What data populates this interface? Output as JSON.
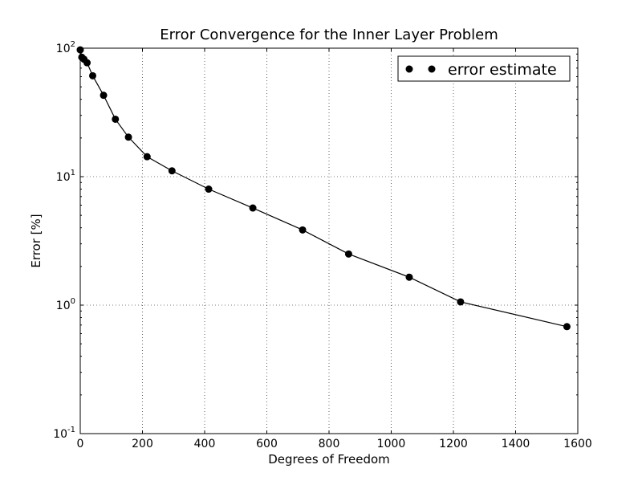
{
  "chart_data": {
    "type": "line",
    "title": "Error Convergence for the Inner Layer Problem",
    "xlabel": "Degrees of Freedom",
    "ylabel": "Error [%]",
    "xlim": [
      0,
      1600
    ],
    "ylim": [
      0.1,
      100
    ],
    "yscale": "log",
    "grid": true,
    "legend_position": "upper-right",
    "x_ticks": [
      {
        "value": 0,
        "label": "0"
      },
      {
        "value": 200,
        "label": "200"
      },
      {
        "value": 400,
        "label": "400"
      },
      {
        "value": 600,
        "label": "600"
      },
      {
        "value": 800,
        "label": "800"
      },
      {
        "value": 1000,
        "label": "1000"
      },
      {
        "value": 1200,
        "label": "1200"
      },
      {
        "value": 1400,
        "label": "1400"
      },
      {
        "value": 1600,
        "label": "1600"
      }
    ],
    "y_ticks": [
      {
        "value": 0.1,
        "base": "10",
        "exp": "-1"
      },
      {
        "value": 1,
        "base": "10",
        "exp": "0"
      },
      {
        "value": 10,
        "base": "10",
        "exp": "1"
      },
      {
        "value": 100,
        "base": "10",
        "exp": "2"
      }
    ],
    "series": [
      {
        "name": "error estimate",
        "color": "#000000",
        "marker": "circle",
        "x": [
          0,
          5,
          12,
          22,
          40,
          75,
          113,
          155,
          215,
          295,
          413,
          555,
          715,
          863,
          1058,
          1223,
          1565
        ],
        "y": [
          97,
          85,
          82,
          77,
          61,
          43,
          28,
          20.3,
          14.3,
          11.1,
          8.0,
          5.7,
          3.85,
          2.5,
          1.65,
          1.06,
          0.68
        ]
      }
    ]
  }
}
